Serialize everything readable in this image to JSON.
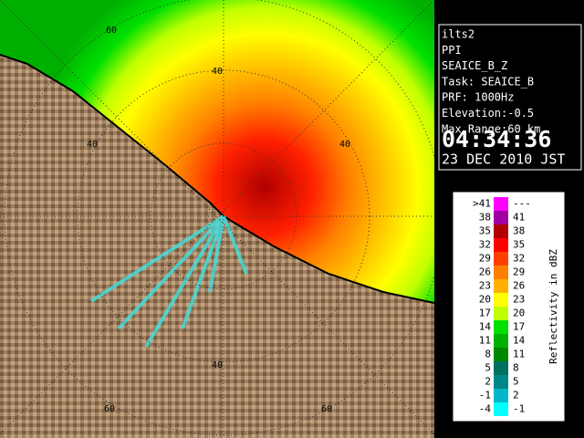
{
  "info": {
    "lines": [
      "ilts2",
      "PPI",
      "SEAICE_B_Z",
      "Task: SEAICE_B",
      "PRF: 1000Hz",
      "Elevation:-0.5",
      "Max Range:60 km"
    ],
    "time": "04:34:36",
    "date": "23 DEC 2010 JST"
  },
  "legend": {
    "title": "Reflectivity in dBZ",
    "rows": [
      {
        "low": ">41",
        "high": "---",
        "color": "#ff00ff"
      },
      {
        "low": "38",
        "high": "41",
        "color": "#a000a0"
      },
      {
        "low": "35",
        "high": "38",
        "color": "#b00000"
      },
      {
        "low": "32",
        "high": "35",
        "color": "#ff0000"
      },
      {
        "low": "29",
        "high": "32",
        "color": "#ff4000"
      },
      {
        "low": "26",
        "high": "29",
        "color": "#ff8000"
      },
      {
        "low": "23",
        "high": "26",
        "color": "#ffb000"
      },
      {
        "low": "20",
        "high": "23",
        "color": "#ffff00"
      },
      {
        "low": "17",
        "high": "20",
        "color": "#c0ff00"
      },
      {
        "low": "14",
        "high": "17",
        "color": "#00e000"
      },
      {
        "low": "11",
        "high": "14",
        "color": "#00b000"
      },
      {
        "low": "8",
        "high": "11",
        "color": "#008800"
      },
      {
        "low": "5",
        "high": "8",
        "color": "#007060"
      },
      {
        "low": "2",
        "high": "5",
        "color": "#008888"
      },
      {
        "low": "-1",
        "high": "2",
        "color": "#00b8c8"
      },
      {
        "low": "-4",
        "high": "-1",
        "color": "#00ffff"
      }
    ]
  },
  "map": {
    "ring_labels": [
      "60",
      "40",
      "40",
      "40",
      "40",
      "60",
      "60"
    ]
  }
}
